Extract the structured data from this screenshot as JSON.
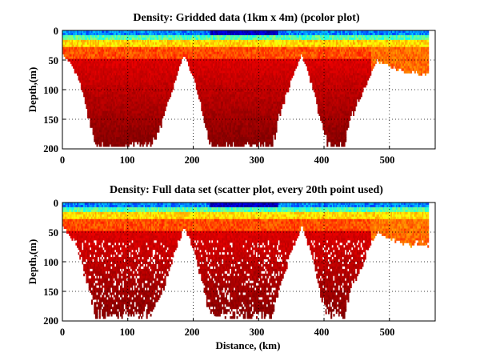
{
  "chart_data": [
    {
      "type": "heatmap",
      "title": "Density: Gridded data (1km x 4m) (pcolor plot)",
      "xlabel": "",
      "ylabel": "Depth,(m)",
      "xlim": [
        0,
        570
      ],
      "ylim": [
        200,
        0
      ],
      "x_ticks": [
        "0",
        "100",
        "200",
        "300",
        "400",
        "500"
      ],
      "y_ticks": [
        "0",
        "50",
        "100",
        "150",
        "200"
      ],
      "grid": true,
      "colormap": "jet",
      "style": "gridded",
      "bottom_depth_profile": {
        "distance_km": [
          0,
          20,
          40,
          50,
          60,
          80,
          100,
          120,
          135,
          150,
          170,
          185,
          200,
          215,
          225,
          230,
          250,
          270,
          290,
          310,
          320,
          330,
          350,
          365,
          380,
          395,
          405,
          420,
          430,
          440,
          460,
          475,
          480,
          500,
          520,
          540,
          560
        ],
        "max_depth_m": [
          40,
          70,
          150,
          200,
          200,
          200,
          200,
          200,
          200,
          160,
          90,
          40,
          80,
          150,
          200,
          200,
          200,
          200,
          200,
          200,
          200,
          150,
          80,
          40,
          90,
          160,
          200,
          200,
          200,
          150,
          100,
          60,
          50,
          60,
          70,
          72,
          75
        ]
      }
    },
    {
      "type": "scatter",
      "title": "Density: Full data set (scatter plot, every 20th point used)",
      "xlabel": "Distance, (km)",
      "ylabel": "Depth,(m)",
      "xlim": [
        0,
        570
      ],
      "ylim": [
        200,
        0
      ],
      "x_ticks": [
        "0",
        "100",
        "200",
        "300",
        "400",
        "500"
      ],
      "y_ticks": [
        "0",
        "50",
        "100",
        "150",
        "200"
      ],
      "grid": true,
      "colormap": "jet",
      "style": "scatter",
      "bottom_depth_profile": {
        "distance_km": [
          0,
          20,
          40,
          50,
          60,
          80,
          100,
          120,
          135,
          150,
          170,
          185,
          200,
          215,
          225,
          230,
          250,
          270,
          290,
          310,
          320,
          330,
          350,
          365,
          380,
          395,
          405,
          420,
          430,
          440,
          460,
          475,
          480,
          500,
          520,
          540,
          560
        ],
        "max_depth_m": [
          40,
          70,
          150,
          195,
          195,
          195,
          195,
          195,
          195,
          160,
          90,
          40,
          80,
          150,
          195,
          195,
          195,
          195,
          195,
          195,
          195,
          150,
          80,
          40,
          90,
          160,
          195,
          195,
          195,
          150,
          100,
          60,
          50,
          60,
          70,
          72,
          75
        ]
      }
    }
  ]
}
